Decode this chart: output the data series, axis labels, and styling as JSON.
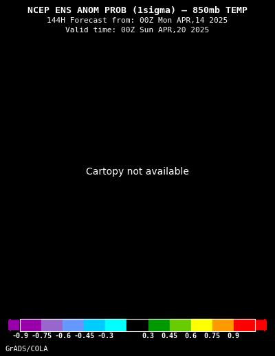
{
  "title_line1": "NCEP ENS ANOM PROB (1sigma) – 850mb TEMP",
  "title_line2": "144H Forecast from: 00Z Mon APR,14 2025",
  "title_line3": "Valid time: 00Z Sun APR,20 2025",
  "background_color": "#000000",
  "title_color": "#ffffff",
  "colorbar_labels": [
    "-0.9",
    "-0.75",
    "-0.6",
    "-0.45",
    "-0.3",
    "0.3",
    "0.45",
    "0.6",
    "0.75",
    "0.9"
  ],
  "colorbar_colors": [
    "#9900aa",
    "#9966cc",
    "#6699ff",
    "#00ccff",
    "#00ffff",
    "#000000",
    "#009900",
    "#66cc00",
    "#ffff00",
    "#ff9900",
    "#ff0000"
  ],
  "footer_text": "GrADS/COLA",
  "fig_width": 4.0,
  "fig_height": 5.18,
  "dpi": 100
}
